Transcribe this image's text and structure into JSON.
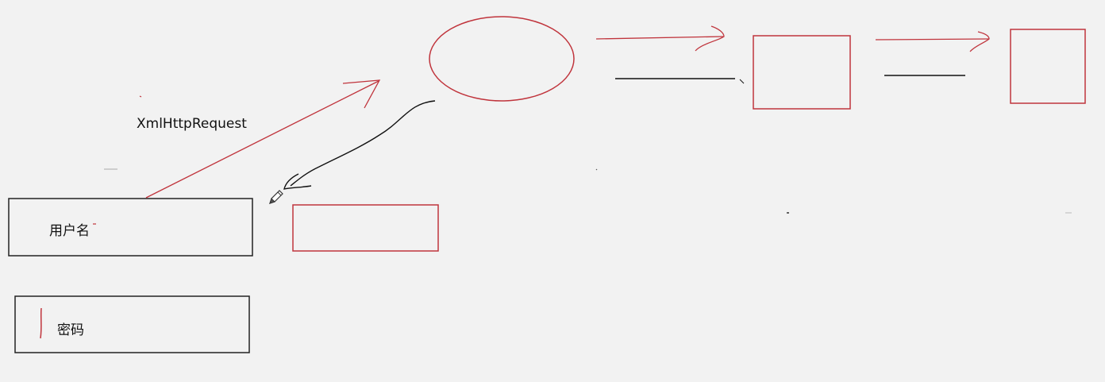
{
  "diagram": {
    "request_label": "XmlHttpRequest",
    "username_label": "用户名",
    "password_label": "密码",
    "colors": {
      "background": "#f2f2f2",
      "red_stroke": "#c0343c",
      "black_stroke": "#111111",
      "box_stroke": "#222222"
    },
    "icons": [
      "pencil-icon"
    ]
  }
}
